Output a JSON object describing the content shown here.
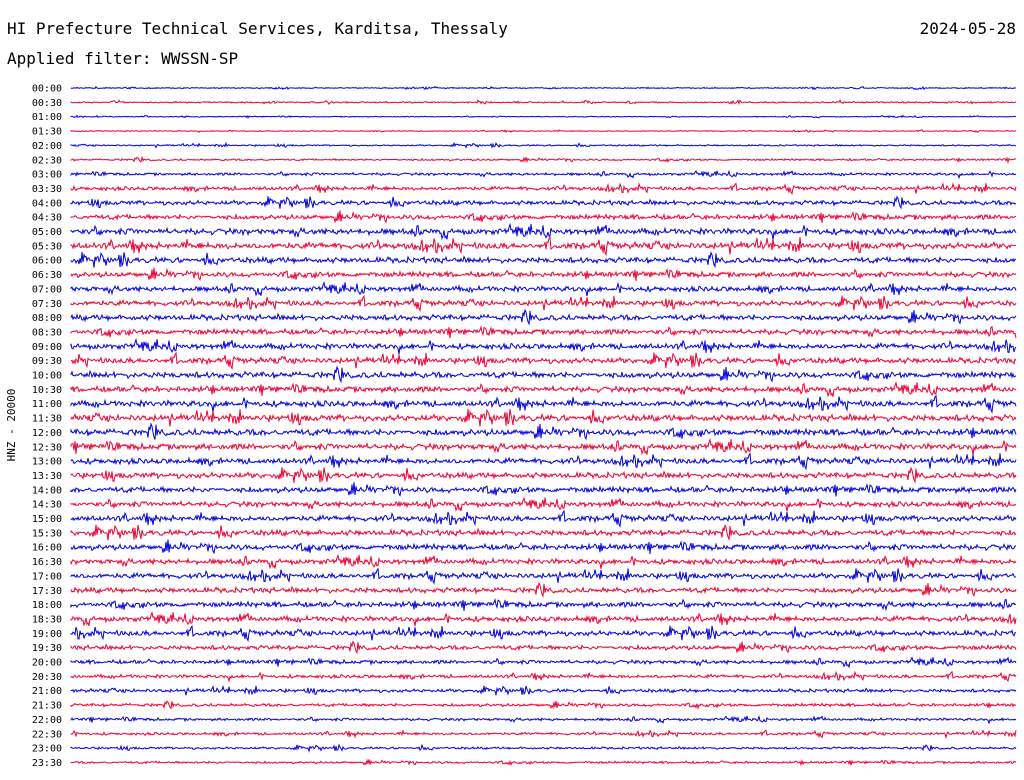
{
  "header": {
    "title": "HI Prefecture Technical Services, Karditsa, Thessaly",
    "date": "2024-05-28",
    "filter": "Applied filter: WWSSN-SP"
  },
  "chart_data": {
    "type": "line",
    "title": "HI Prefecture Technical Services, Karditsa, Thessaly",
    "ylabel": "HNZ - 20000",
    "row_labels": [
      "00:00",
      "00:30",
      "01:00",
      "01:30",
      "02:00",
      "02:30",
      "03:00",
      "03:30",
      "04:00",
      "04:30",
      "05:00",
      "05:30",
      "06:00",
      "06:30",
      "07:00",
      "07:30",
      "08:00",
      "08:30",
      "09:00",
      "09:30",
      "10:00",
      "10:30",
      "11:00",
      "11:30",
      "12:00",
      "12:30",
      "13:00",
      "13:30",
      "14:00",
      "14:30",
      "15:00",
      "15:30",
      "16:00",
      "16:30",
      "17:00",
      "17:30",
      "18:00",
      "18:30",
      "19:00",
      "19:30",
      "20:00",
      "20:30",
      "21:00",
      "21:30",
      "22:00",
      "22:30",
      "23:00",
      "23:30"
    ],
    "trace_colors": [
      "#0000dd",
      "#ee0033"
    ],
    "relative_noise_level": [
      0.15,
      0.2,
      0.12,
      0.12,
      0.2,
      0.25,
      0.35,
      0.5,
      0.6,
      0.65,
      0.8,
      0.85,
      0.75,
      0.7,
      0.7,
      0.7,
      0.75,
      0.7,
      0.75,
      0.75,
      0.8,
      0.75,
      0.8,
      0.85,
      0.85,
      0.8,
      0.75,
      0.75,
      0.75,
      0.7,
      0.75,
      0.75,
      0.75,
      0.7,
      0.7,
      0.7,
      0.7,
      0.7,
      0.7,
      0.6,
      0.5,
      0.45,
      0.45,
      0.4,
      0.35,
      0.35,
      0.3,
      0.3
    ]
  }
}
